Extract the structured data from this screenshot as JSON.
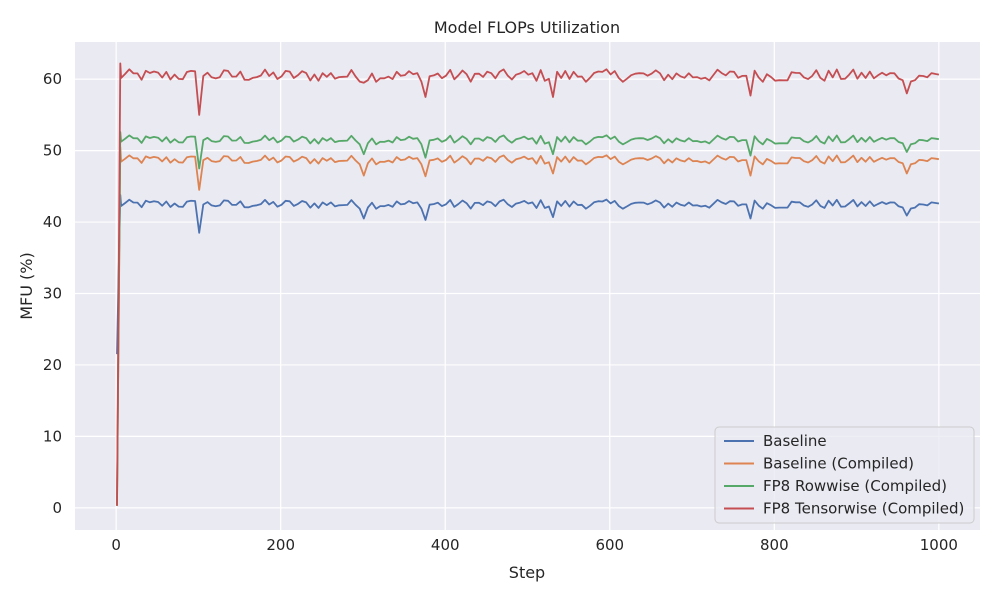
{
  "chart_data": {
    "type": "line",
    "title": "Model FLOPs Utilization",
    "xlabel": "Step",
    "ylabel": "MFU (%)",
    "xlim": [
      -50,
      1050
    ],
    "ylim": [
      -3.1,
      65.2
    ],
    "xticks": [
      0,
      200,
      400,
      600,
      800,
      1000
    ],
    "yticks": [
      0,
      10,
      20,
      30,
      40,
      50,
      60
    ],
    "grid": true,
    "legend_position": "lower-right",
    "colors": {
      "background": "#eaeaf2",
      "grid": "#ffffff",
      "text": "#262626"
    },
    "series": [
      {
        "name": "Baseline",
        "color": "#4c72b0",
        "base": 42.5,
        "startup": [
          21.5,
          43.8
        ]
      },
      {
        "name": "Baseline (Compiled)",
        "color": "#dd8452",
        "base": 48.7,
        "startup": [
          0.3,
          50.5
        ]
      },
      {
        "name": "FP8 Rowwise (Compiled)",
        "color": "#55a868",
        "base": 51.5,
        "startup": [
          0.3,
          52.6
        ]
      },
      {
        "name": "FP8 Tensorwise (Compiled)",
        "color": "#c44e52",
        "base": 60.5,
        "startup": [
          0.3,
          62.2
        ]
      }
    ],
    "x_range": [
      1,
      1000
    ],
    "sample_every": 5,
    "notable_dips": {
      "step_100": [
        38.5,
        44.5,
        47.5,
        55.0
      ],
      "step_300": [
        40.5,
        46.5,
        49.5,
        59.5
      ],
      "step_375": [
        40.3,
        46.4,
        49.0,
        57.5
      ],
      "step_530": [
        40.7,
        46.8,
        49.5,
        57.5
      ],
      "step_770": [
        40.5,
        46.5,
        49.3,
        57.7
      ],
      "step_960": [
        40.9,
        46.8,
        49.8,
        58.0
      ]
    }
  }
}
